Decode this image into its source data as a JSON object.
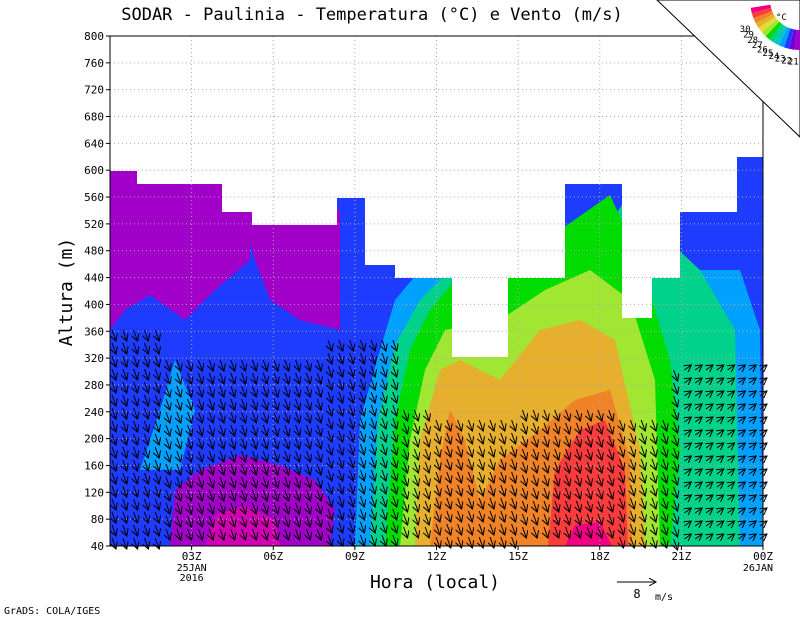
{
  "chart_data": {
    "type": "heatmap",
    "title": "SODAR - Paulinia - Temperatura (°C) e Vento (m/s)",
    "xlabel": "Hora (local)",
    "ylabel": "Altura (m)",
    "ylim": [
      40,
      800
    ],
    "yticks": [
      40,
      80,
      120,
      160,
      200,
      240,
      280,
      320,
      360,
      400,
      440,
      480,
      520,
      560,
      600,
      640,
      680,
      720,
      760,
      800
    ],
    "xticks": [
      {
        "hour": 3,
        "label": "03Z",
        "sub1": "25JAN",
        "sub2": "2016"
      },
      {
        "hour": 6,
        "label": "06Z"
      },
      {
        "hour": 9,
        "label": "09Z"
      },
      {
        "hour": 12,
        "label": "12Z"
      },
      {
        "hour": 15,
        "label": "15Z"
      },
      {
        "hour": 18,
        "label": "18Z"
      },
      {
        "hour": 21,
        "label": "21Z"
      },
      {
        "hour": 24,
        "label": "00Z",
        "sub1": "26JAN"
      }
    ],
    "xlim_hours": [
      0,
      24
    ],
    "grid": true,
    "legend": {
      "position": "top-right",
      "unit": "°C",
      "levels": [
        21,
        22,
        23,
        24,
        25,
        26,
        27,
        28,
        29,
        30
      ],
      "colors": [
        "#a000c8",
        "#6e00dc",
        "#1e3cff",
        "#00a0ff",
        "#00c8c8",
        "#00d28c",
        "#00dc00",
        "#a0e632",
        "#e6dc32",
        "#e6af2d",
        "#f08228",
        "#fa3c3c",
        "#f00082"
      ]
    },
    "wind_reference": {
      "value": 8,
      "unit": "m/s",
      "label": "8",
      "unit_label": "m/s"
    }
  },
  "footer": {
    "credit": "GrADS: COLA/IGES"
  }
}
